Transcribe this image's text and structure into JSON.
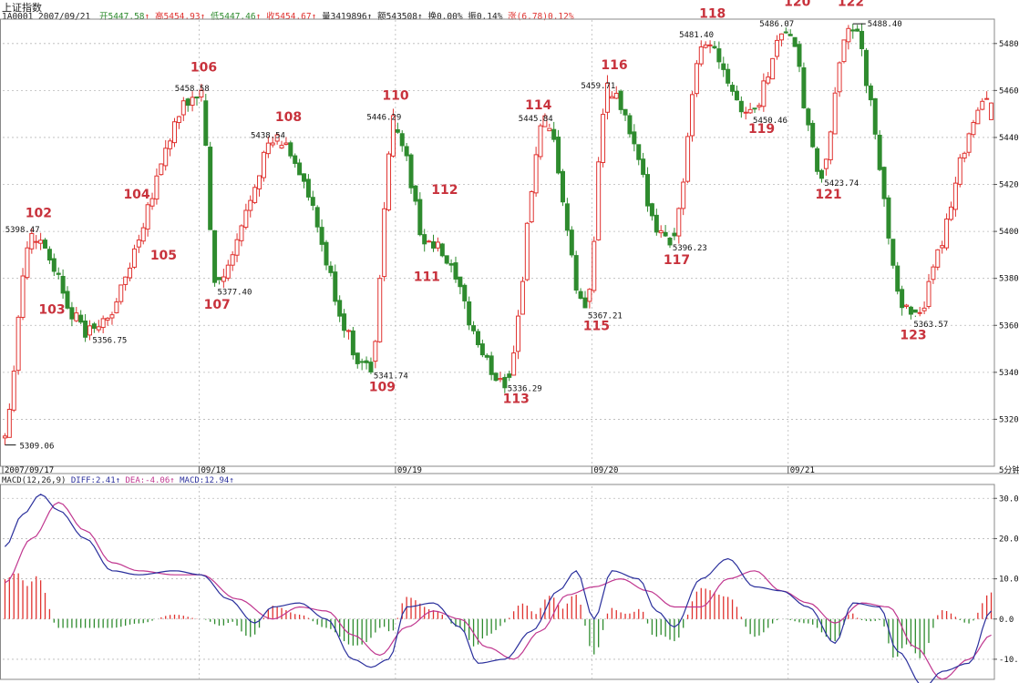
{
  "header": {
    "title": "上证指数",
    "code_date": "1A0001 2007/09/21",
    "open_label": "开",
    "open": "5447.58",
    "high_label": "高",
    "high": "5454.93",
    "low_label": "低",
    "low": "5447.46",
    "close_label": "收",
    "close": "5454.67",
    "vol_label": "量",
    "vol": "3419896",
    "amount_label": "额",
    "amount": "543508",
    "turnover_label": "换",
    "turnover": "0.00%",
    "amp_label": "振",
    "amp": "0.14%",
    "change_label": "涨",
    "change": "(6.78)0.12%"
  },
  "macd_legend": {
    "name": "MACD(12,26,9)",
    "diff": "DIFF:2.41",
    "dea": "DEA:-4.06",
    "macd": "MACD:12.94"
  },
  "colors": {
    "up": "#e0322f",
    "down": "#2e8b2e",
    "diff": "#2a2f9c",
    "dea": "#c0368f",
    "grid": "#b8b8b8",
    "annotation": "#c8323c"
  },
  "period_label": "5分钟",
  "chart_data": [
    {
      "type": "candlestick",
      "title": "上证指数",
      "ylim": [
        5300,
        5490
      ],
      "y_ticks": [
        5320,
        5340,
        5360,
        5380,
        5400,
        5420,
        5440,
        5460,
        5480
      ],
      "x_dates": [
        "2007/09/17",
        "09/18",
        "09/19",
        "09/20",
        "09/21"
      ],
      "x_date_bars": [
        0,
        44,
        88,
        132,
        176
      ],
      "n_bars": 222,
      "anchors": [
        {
          "bar": 0,
          "price": 5309.06,
          "label": "5309.06",
          "kind": "low"
        },
        {
          "bar": 7,
          "price": 5398.47,
          "label": "5398.47",
          "kind": "high"
        },
        {
          "bar": 20,
          "price": 5356.75,
          "label": "5356.75",
          "kind": "low"
        },
        {
          "bar": 45,
          "price": 5458.58,
          "label": "5458.58",
          "kind": "high"
        },
        {
          "bar": 48,
          "price": 5377.4,
          "label": "5377.40",
          "kind": "low"
        },
        {
          "bar": 62,
          "price": 5438.54,
          "label": "5438.54",
          "kind": "high"
        },
        {
          "bar": 83,
          "price": 5341.74,
          "label": "5341.74",
          "kind": "low"
        },
        {
          "bar": 88,
          "price": 5446.29,
          "label": "5446.29",
          "kind": "high"
        },
        {
          "bar": 96,
          "price": 5394.0,
          "label": "",
          "kind": "mid"
        },
        {
          "bar": 113,
          "price": 5336.29,
          "label": "5336.29",
          "kind": "low"
        },
        {
          "bar": 122,
          "price": 5445.84,
          "label": "5445.84",
          "kind": "high"
        },
        {
          "bar": 131,
          "price": 5367.21,
          "label": "5367.21",
          "kind": "low"
        },
        {
          "bar": 136,
          "price": 5459.71,
          "label": "5459.71",
          "kind": "high"
        },
        {
          "bar": 150,
          "price": 5396.23,
          "label": "5396.23",
          "kind": "low"
        },
        {
          "bar": 158,
          "price": 5481.4,
          "label": "5481.40",
          "kind": "high"
        },
        {
          "bar": 168,
          "price": 5450.46,
          "label": "5450.46",
          "kind": "low"
        },
        {
          "bar": 176,
          "price": 5486.07,
          "label": "5486.07",
          "kind": "high"
        },
        {
          "bar": 184,
          "price": 5423.74,
          "label": "5423.74",
          "kind": "low"
        },
        {
          "bar": 190,
          "price": 5488.4,
          "label": "5488.40",
          "kind": "high"
        },
        {
          "bar": 204,
          "price": 5363.57,
          "label": "5363.57",
          "kind": "low"
        },
        {
          "bar": 221,
          "price": 5454.67,
          "label": "",
          "kind": "last"
        }
      ],
      "annotations": [
        {
          "text": "102",
          "bar": 7,
          "price": 5406
        },
        {
          "text": "103",
          "bar": 10,
          "price": 5365
        },
        {
          "text": "104",
          "bar": 29,
          "price": 5414
        },
        {
          "text": "105",
          "bar": 35,
          "price": 5388
        },
        {
          "text": "106",
          "bar": 44,
          "price": 5468
        },
        {
          "text": "107",
          "bar": 47,
          "price": 5367
        },
        {
          "text": "108",
          "bar": 63,
          "price": 5447
        },
        {
          "text": "109",
          "bar": 84,
          "price": 5332
        },
        {
          "text": "110",
          "bar": 87,
          "price": 5456
        },
        {
          "text": "111",
          "bar": 94,
          "price": 5379
        },
        {
          "text": "112",
          "bar": 98,
          "price": 5416
        },
        {
          "text": "113",
          "bar": 114,
          "price": 5327
        },
        {
          "text": "114",
          "bar": 119,
          "price": 5452
        },
        {
          "text": "115",
          "bar": 132,
          "price": 5358
        },
        {
          "text": "116",
          "bar": 136,
          "price": 5469
        },
        {
          "text": "117",
          "bar": 150,
          "price": 5386
        },
        {
          "text": "118",
          "bar": 158,
          "price": 5491
        },
        {
          "text": "119",
          "bar": 169,
          "price": 5442
        },
        {
          "text": "120",
          "bar": 177,
          "price": 5496
        },
        {
          "text": "121",
          "bar": 184,
          "price": 5414
        },
        {
          "text": "122",
          "bar": 189,
          "price": 5496
        },
        {
          "text": "123",
          "bar": 203,
          "price": 5354
        }
      ]
    },
    {
      "type": "macd",
      "title": "MACD(12,26,9)",
      "ylim": [
        -15,
        33
      ],
      "y_ticks": [
        -10.0,
        0.0,
        10.0,
        20.0,
        30.0
      ],
      "y_tick_labels": [
        "-10.0",
        "0.0",
        "10.0",
        "20.0",
        "30.0"
      ],
      "series": [
        {
          "name": "DIFF",
          "anchors": [
            [
              0,
              18
            ],
            [
              4,
              26
            ],
            [
              8,
              31
            ],
            [
              12,
              27
            ],
            [
              18,
              20
            ],
            [
              24,
              12
            ],
            [
              30,
              11
            ],
            [
              38,
              12
            ],
            [
              44,
              11
            ],
            [
              50,
              5
            ],
            [
              56,
              -1
            ],
            [
              60,
              3
            ],
            [
              66,
              4
            ],
            [
              72,
              0
            ],
            [
              78,
              -10
            ],
            [
              82,
              -12
            ],
            [
              86,
              -10
            ],
            [
              90,
              3
            ],
            [
              96,
              4
            ],
            [
              102,
              -2
            ],
            [
              106,
              -11
            ],
            [
              112,
              -10
            ],
            [
              118,
              -3
            ],
            [
              124,
              7
            ],
            [
              128,
              12
            ],
            [
              132,
              0
            ],
            [
              136,
              12
            ],
            [
              142,
              10
            ],
            [
              146,
              2
            ],
            [
              150,
              -2
            ],
            [
              156,
              10
            ],
            [
              162,
              15
            ],
            [
              168,
              8
            ],
            [
              174,
              7
            ],
            [
              180,
              3
            ],
            [
              186,
              -6
            ],
            [
              190,
              4
            ],
            [
              196,
              3
            ],
            [
              200,
              -8
            ],
            [
              206,
              -17
            ],
            [
              210,
              -13
            ],
            [
              216,
              -11
            ],
            [
              221,
              2
            ]
          ]
        },
        {
          "name": "DEA",
          "anchors": [
            [
              0,
              9
            ],
            [
              6,
              20
            ],
            [
              12,
              29
            ],
            [
              18,
              22
            ],
            [
              24,
              14
            ],
            [
              30,
              12
            ],
            [
              38,
              11
            ],
            [
              44,
              11
            ],
            [
              52,
              5
            ],
            [
              60,
              0
            ],
            [
              66,
              3
            ],
            [
              72,
              2
            ],
            [
              78,
              -4
            ],
            [
              84,
              -9
            ],
            [
              90,
              -2
            ],
            [
              96,
              2
            ],
            [
              102,
              0
            ],
            [
              108,
              -7
            ],
            [
              114,
              -10
            ],
            [
              120,
              -3
            ],
            [
              126,
              6
            ],
            [
              132,
              8
            ],
            [
              138,
              10
            ],
            [
              144,
              7
            ],
            [
              150,
              3
            ],
            [
              156,
              3
            ],
            [
              162,
              10
            ],
            [
              168,
              12
            ],
            [
              174,
              7
            ],
            [
              180,
              4
            ],
            [
              186,
              -1
            ],
            [
              192,
              4
            ],
            [
              198,
              3
            ],
            [
              204,
              -7
            ],
            [
              210,
              -15
            ],
            [
              216,
              -10
            ],
            [
              221,
              -4
            ]
          ]
        }
      ]
    }
  ]
}
